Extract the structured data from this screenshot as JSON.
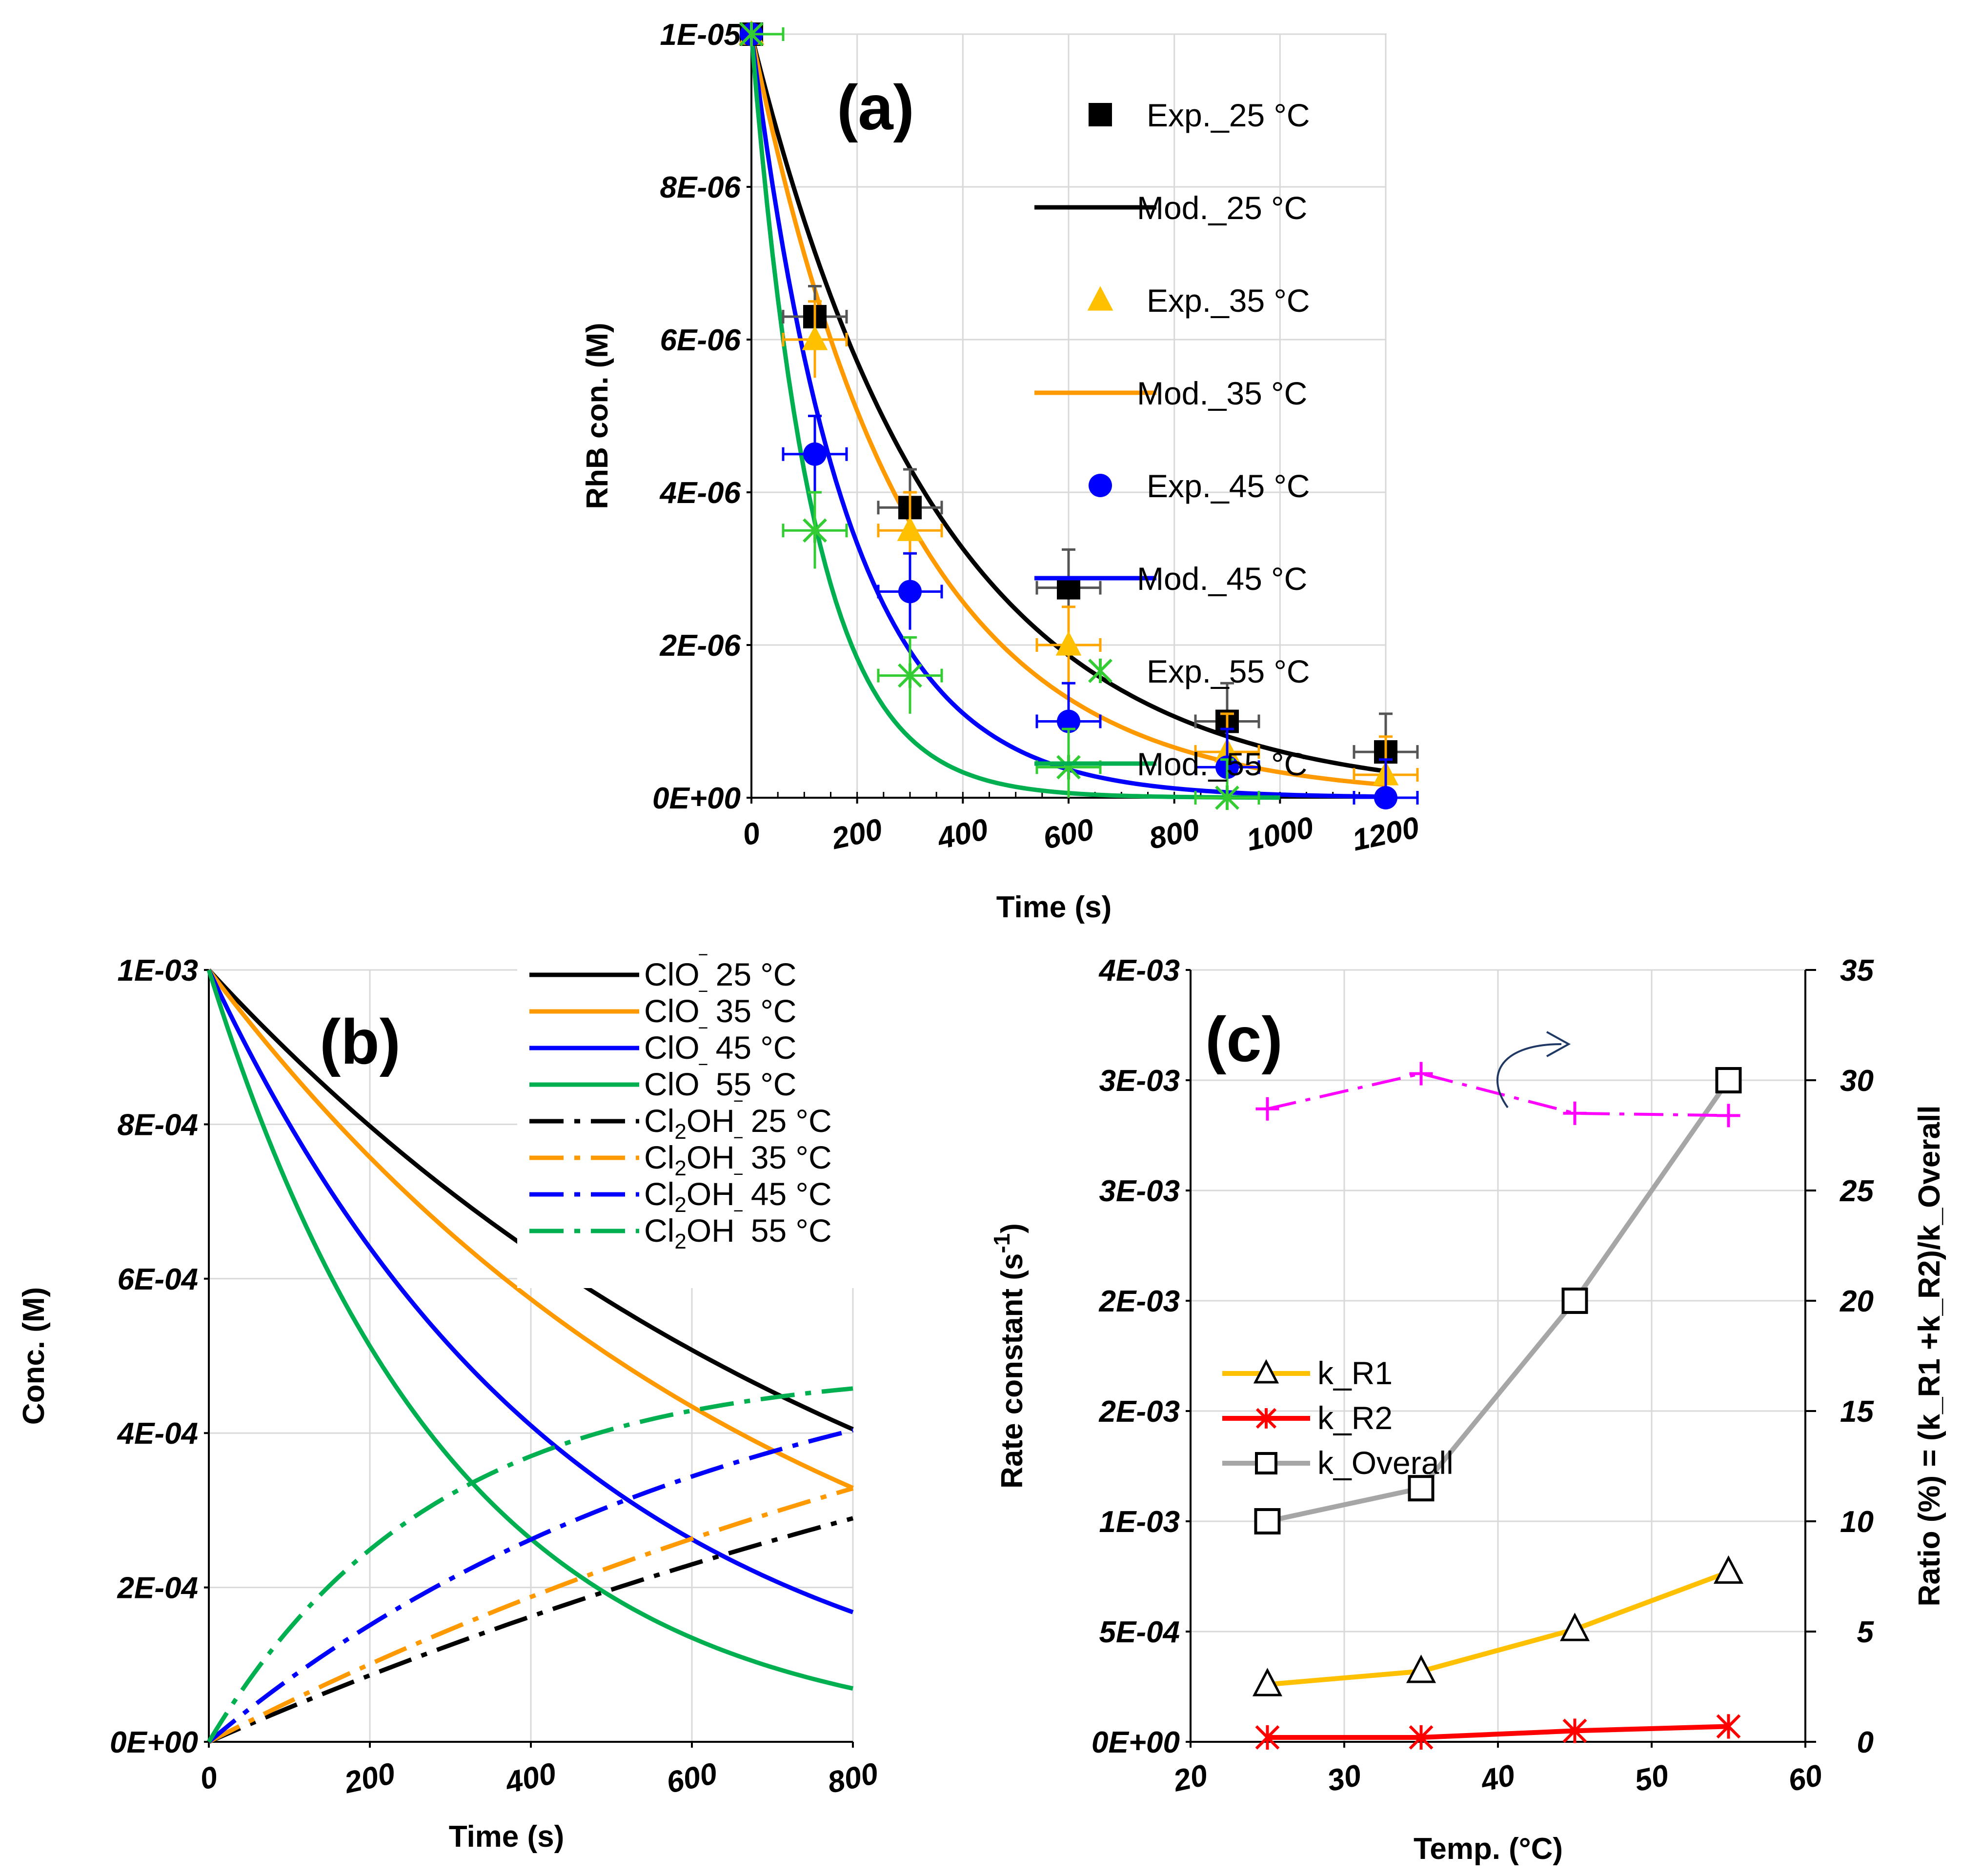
{
  "chart_data": [
    {
      "panel": "(a)",
      "type": "scatter",
      "xlabel": "Time (s)",
      "ylabel": "RhB con. (M)",
      "xlim": [
        0,
        1200
      ],
      "ylim": [
        0,
        1e-05
      ],
      "xticks": [
        0,
        200,
        400,
        600,
        800,
        1000,
        1200
      ],
      "xtick_labels": [
        "0",
        "200",
        "400",
        "600",
        "800",
        "1000",
        "1200"
      ],
      "yticks": [
        0,
        2e-06,
        4e-06,
        6e-06,
        8e-06,
        1e-05
      ],
      "ytick_labels": [
        "0E+00",
        "2E-06",
        "4E-06",
        "6E-06",
        "8E-06",
        "1E-05"
      ],
      "legend_position": "top-right",
      "series": [
        {
          "name": "Exp._25 °C",
          "kind": "points",
          "marker": "square",
          "color": "#000000",
          "x": [
            0,
            120,
            300,
            600,
            900,
            1200
          ],
          "y": [
            1e-05,
            6.3e-06,
            3.8e-06,
            2.75e-06,
            1e-06,
            6e-07
          ],
          "xerr": 60,
          "yerr": [
            0,
            4e-07,
            5e-07,
            5e-07,
            5e-07,
            5e-07
          ],
          "errcolor": "#555555"
        },
        {
          "name": "Mod._25 °C",
          "kind": "line",
          "color": "#000000",
          "k": 0.0028,
          "c0": 1e-05,
          "xmax": 1200
        },
        {
          "name": "Exp._35 °C",
          "kind": "points",
          "marker": "triangle",
          "color": "#ffc000",
          "x": [
            0,
            120,
            300,
            600,
            900,
            1200
          ],
          "y": [
            1e-05,
            6e-06,
            3.5e-06,
            2e-06,
            6e-07,
            3e-07
          ],
          "xerr": 60,
          "yerr": [
            0,
            5e-07,
            5e-07,
            5e-07,
            5e-07,
            5e-07
          ],
          "errcolor": "#ffa500"
        },
        {
          "name": "Mod._35 °C",
          "kind": "line",
          "color": "#ff9900",
          "k": 0.0034,
          "c0": 1e-05,
          "xmax": 1200
        },
        {
          "name": "Exp._45 °C",
          "kind": "points",
          "marker": "circle",
          "color": "#0000ff",
          "x": [
            0,
            120,
            300,
            600,
            900,
            1200
          ],
          "y": [
            1e-05,
            4.5e-06,
            2.7e-06,
            1e-06,
            4e-07,
            0
          ],
          "xerr": 60,
          "yerr": [
            0,
            5e-07,
            5e-07,
            5e-07,
            5e-07,
            5e-07
          ],
          "errcolor": "#0000ff"
        },
        {
          "name": "Mod._45 °C",
          "kind": "line",
          "color": "#0000ff",
          "k": 0.0055,
          "c0": 1e-05,
          "xmax": 1200
        },
        {
          "name": "Exp._55 °C",
          "kind": "points",
          "marker": "asterisk",
          "color": "#33cc33",
          "x": [
            0,
            120,
            300,
            600,
            900
          ],
          "y": [
            1e-05,
            3.5e-06,
            1.6e-06,
            4e-07,
            0
          ],
          "xerr": 60,
          "yerr": [
            0,
            5e-07,
            5e-07,
            5e-07,
            5e-07
          ],
          "errcolor": "#33cc33"
        },
        {
          "name": "Mod._55 °C",
          "kind": "line",
          "color": "#00b050",
          "k": 0.0085,
          "c0": 1e-05,
          "xmax": 1000
        }
      ]
    },
    {
      "panel": "(b)",
      "type": "line",
      "xlabel": "Time (s)",
      "ylabel": "Conc. (M)",
      "xlim": [
        0,
        800
      ],
      "ylim": [
        0,
        0.001
      ],
      "xticks": [
        0,
        200,
        400,
        600,
        800
      ],
      "xtick_labels": [
        "0",
        "200",
        "400",
        "600",
        "800"
      ],
      "yticks": [
        0,
        0.0002,
        0.0004,
        0.0006,
        0.0008,
        0.001
      ],
      "ytick_labels": [
        "0E+00",
        "2E-04",
        "4E-04",
        "6E-04",
        "8E-04",
        "1E-03"
      ],
      "legend_position": "top-right",
      "legend": [
        {
          "species": "ClO",
          "sub": "",
          "temp": "25 °C",
          "color": "#000000",
          "dash": "solid"
        },
        {
          "species": "ClO",
          "sub": "",
          "temp": "35 °C",
          "color": "#ff9900",
          "dash": "solid"
        },
        {
          "species": "ClO",
          "sub": "",
          "temp": "45 °C",
          "color": "#0000ff",
          "dash": "solid"
        },
        {
          "species": "ClO",
          "sub": "",
          "temp": "55 °C",
          "color": "#00b050",
          "dash": "solid"
        },
        {
          "species": "Cl",
          "sub": "2",
          "after": "OH",
          "temp": "25 °C",
          "color": "#000000",
          "dash": "dashdot"
        },
        {
          "species": "Cl",
          "sub": "2",
          "after": "OH",
          "temp": "35 °C",
          "color": "#ff9900",
          "dash": "dashdot"
        },
        {
          "species": "Cl",
          "sub": "2",
          "after": "OH",
          "temp": "45 °C",
          "color": "#0000ff",
          "dash": "dashdot"
        },
        {
          "species": "Cl",
          "sub": "2",
          "after": "OH",
          "temp": "55 °C",
          "color": "#00b050",
          "dash": "dashdot"
        }
      ],
      "series": [
        {
          "name": "ClO‾ 25 °C",
          "color": "#000000",
          "shape": "decay",
          "c0": 0.001,
          "k": 0.00113
        },
        {
          "name": "ClO‾ 35 °C",
          "color": "#ff9900",
          "shape": "decay",
          "c0": 0.001,
          "k": 0.00139
        },
        {
          "name": "ClO‾ 45 °C",
          "color": "#0000ff",
          "shape": "decay",
          "c0": 0.001,
          "k": 0.00223
        },
        {
          "name": "ClO‾ 55 °C",
          "color": "#00b050",
          "shape": "decay",
          "c0": 0.001,
          "k": 0.00334
        },
        {
          "name": "Cl2OH‾ 25 °C",
          "color": "#000000",
          "shape": "rise",
          "cmax": 0.00075,
          "k": 0.00061
        },
        {
          "name": "Cl2OH‾ 35 °C",
          "color": "#ff9900",
          "shape": "rise",
          "cmax": 0.00075,
          "k": 0.00072
        },
        {
          "name": "Cl2OH‾ 45 °C",
          "color": "#0000ff",
          "shape": "rise",
          "cmax": 0.00057,
          "k": 0.00154
        },
        {
          "name": "Cl2OH‾ 55 °C",
          "color": "#00b050",
          "shape": "rise",
          "cmax": 0.000485,
          "k": 0.0036
        }
      ]
    },
    {
      "panel": "(c)",
      "type": "line",
      "xlabel": "Temp. (°C)",
      "ylabel": "Rate constant (s",
      "ylabel_sup": "-1",
      "ylabel_end": ")",
      "y2label": "Ratio (%) = (k_R1 +k_R2)/k_Overall",
      "xlim": [
        20,
        60
      ],
      "ylim": [
        0,
        0.0035
      ],
      "y2lim": [
        0,
        35
      ],
      "xticks": [
        20,
        30,
        40,
        50,
        60
      ],
      "xtick_labels": [
        "20",
        "30",
        "40",
        "50",
        "60"
      ],
      "yticks": [
        0,
        0.0005,
        0.001,
        0.0015,
        0.002,
        0.0025,
        0.003,
        0.0035
      ],
      "ytick_labels": [
        "0E+00",
        "5E-04",
        "1E-03",
        "2E-03",
        "2E-03",
        "3E-03",
        "3E-03",
        "4E-03"
      ],
      "y2ticks": [
        0,
        5,
        10,
        15,
        20,
        25,
        30,
        35
      ],
      "y2tick_labels": [
        "0",
        "5",
        "10",
        "15",
        "20",
        "25",
        "30",
        "35"
      ],
      "legend_position": "middle-left",
      "series": [
        {
          "name": "k_R1",
          "color": "#ffc000",
          "marker": "triangle-open",
          "axis": "left",
          "x": [
            25,
            35,
            45,
            55
          ],
          "y": [
            0.00026,
            0.00032,
            0.00051,
            0.00077
          ]
        },
        {
          "name": "k_R2",
          "color": "#ff0000",
          "marker": "asterisk",
          "axis": "left",
          "x": [
            25,
            35,
            45,
            55
          ],
          "y": [
            2e-05,
            2e-05,
            5e-05,
            7e-05
          ]
        },
        {
          "name": "k_Overall",
          "color": "#a6a6a6",
          "marker": "square-open",
          "axis": "left",
          "x": [
            25,
            35,
            45,
            55
          ],
          "y": [
            0.001,
            0.00115,
            0.002,
            0.003
          ]
        },
        {
          "name": "Ratio",
          "color": "#ff00ff",
          "marker": "plus",
          "axis": "right",
          "legend": false,
          "x": [
            25,
            35,
            45,
            55
          ],
          "y": [
            28.7,
            30.3,
            28.5,
            28.4
          ]
        }
      ]
    }
  ]
}
